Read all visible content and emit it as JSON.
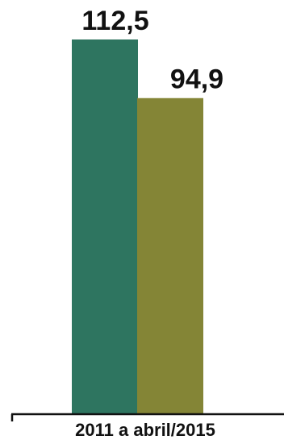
{
  "chart_data": {
    "type": "bar",
    "categories": [
      "2011 a abril/2015"
    ],
    "series": [
      {
        "values": [
          112.5
        ],
        "color": "#2e7560"
      },
      {
        "values": [
          94.9
        ],
        "color": "#848536"
      }
    ],
    "data_labels": [
      "112,5",
      "94,9"
    ],
    "ylim": [
      0,
      112.5
    ],
    "axis_color": "#111111",
    "grid": false,
    "legend": "none"
  }
}
